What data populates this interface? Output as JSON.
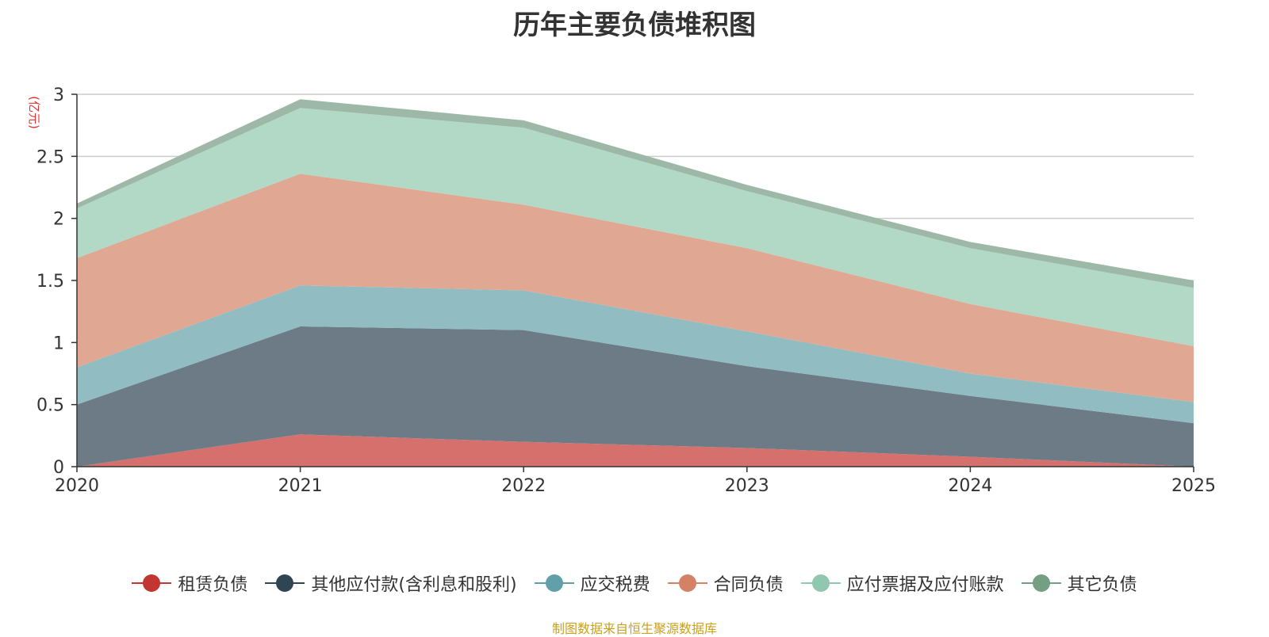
{
  "chart_data": {
    "type": "area",
    "stacked": true,
    "title": "历年主要负债堆积图",
    "ylabel": "(亿元)",
    "xlabel": "",
    "categories": [
      "2020",
      "2021",
      "2022",
      "2023",
      "2024",
      "2025"
    ],
    "ylim": [
      0,
      3
    ],
    "yticks": [
      "0",
      "0.5",
      "1",
      "1.5",
      "2",
      "2.5",
      "3"
    ],
    "grid": true,
    "legend_position": "bottom",
    "series": [
      {
        "name": "租赁负债",
        "values": [
          0.0,
          0.26,
          0.2,
          0.15,
          0.08,
          0.0
        ],
        "color": "#c23531",
        "fill": "#d6706c"
      },
      {
        "name": "其他应付款(含利息和股利)",
        "values": [
          0.5,
          0.87,
          0.9,
          0.66,
          0.49,
          0.35
        ],
        "color": "#2f4554",
        "fill": "#6d7b86"
      },
      {
        "name": "应交税费",
        "values": [
          0.3,
          0.33,
          0.32,
          0.28,
          0.18,
          0.17
        ],
        "color": "#61a0a8",
        "fill": "#90bcc2"
      },
      {
        "name": "合同负债",
        "values": [
          0.88,
          0.9,
          0.69,
          0.67,
          0.56,
          0.45
        ],
        "color": "#d48265",
        "fill": "#e0a793"
      },
      {
        "name": "应付票据及应付账款",
        "values": [
          0.4,
          0.53,
          0.62,
          0.46,
          0.45,
          0.47
        ],
        "color": "#91c7ae",
        "fill": "#b2d8c6"
      },
      {
        "name": "其它负债",
        "values": [
          0.04,
          0.07,
          0.06,
          0.05,
          0.05,
          0.06
        ],
        "color": "#749f83",
        "fill": "#9db8a6"
      }
    ],
    "source": "制图数据来自恒生聚源数据库"
  }
}
